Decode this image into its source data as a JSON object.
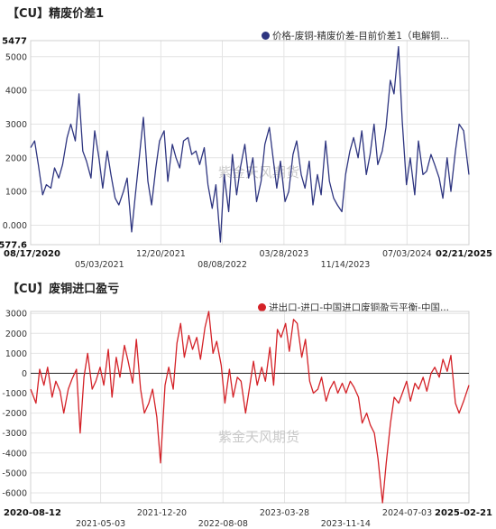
{
  "chart_data": [
    {
      "type": "line",
      "title": "【CU】精废价差1",
      "legend": "价格-废铜-精废价差-目前价差1（电解铜...",
      "legend_position": "top-right",
      "color": "#2e3580",
      "watermark": "紫金天风期货",
      "grid": true,
      "ylim": [
        -577.6,
        5477
      ],
      "yticks": [
        "5477",
        "5000",
        "4000",
        "3000",
        "2000",
        "1000",
        "0.000",
        "-577.6"
      ],
      "ytick_values": [
        5477,
        5000,
        4000,
        3000,
        2000,
        1000,
        0,
        -577.6
      ],
      "xlim": [
        "2020-08-17",
        "2025-02-21"
      ],
      "xticks_top": [
        "08/17/2020",
        "12/20/2021",
        "03/28/2023",
        "07/03/2024",
        "02/21/2025"
      ],
      "xticks_bottom": [
        "05/03/2021",
        "08/08/2022",
        "11/14/2023"
      ],
      "xticks_top_dates": [
        "2020-08-17",
        "2021-12-20",
        "2023-03-28",
        "2024-07-03",
        "2025-02-21"
      ],
      "xticks_bottom_dates": [
        "2021-05-03",
        "2022-08-08",
        "2023-11-14"
      ],
      "series": [
        {
          "x": [
            "2020-08-17",
            "2020-09-01",
            "2020-09-15",
            "2020-10-01",
            "2020-10-15",
            "2020-11-01",
            "2020-11-15",
            "2020-12-01",
            "2020-12-15",
            "2021-01-01",
            "2021-01-15",
            "2021-02-01",
            "2021-02-15",
            "2021-03-01",
            "2021-03-15",
            "2021-04-01",
            "2021-04-15",
            "2021-05-01",
            "2021-05-15",
            "2021-06-01",
            "2021-06-15",
            "2021-07-01",
            "2021-07-15",
            "2021-08-01",
            "2021-08-15",
            "2021-09-01",
            "2021-09-15",
            "2021-10-01",
            "2021-10-15",
            "2021-11-01",
            "2021-11-15",
            "2021-12-01",
            "2021-12-15",
            "2022-01-01",
            "2022-01-15",
            "2022-02-01",
            "2022-02-15",
            "2022-03-01",
            "2022-03-15",
            "2022-04-01",
            "2022-04-15",
            "2022-05-01",
            "2022-05-15",
            "2022-06-01",
            "2022-06-15",
            "2022-07-01",
            "2022-07-15",
            "2022-08-01",
            "2022-08-15",
            "2022-09-01",
            "2022-09-15",
            "2022-10-01",
            "2022-10-15",
            "2022-11-01",
            "2022-11-15",
            "2022-12-01",
            "2022-12-15",
            "2023-01-01",
            "2023-01-15",
            "2023-02-01",
            "2023-02-15",
            "2023-03-01",
            "2023-03-15",
            "2023-04-01",
            "2023-04-15",
            "2023-05-01",
            "2023-05-15",
            "2023-06-01",
            "2023-06-15",
            "2023-07-01",
            "2023-07-15",
            "2023-08-01",
            "2023-08-15",
            "2023-09-01",
            "2023-09-15",
            "2023-10-01",
            "2023-10-15",
            "2023-11-01",
            "2023-11-15",
            "2023-12-01",
            "2023-12-15",
            "2024-01-01",
            "2024-01-15",
            "2024-02-01",
            "2024-02-15",
            "2024-03-01",
            "2024-03-15",
            "2024-04-01",
            "2024-04-15",
            "2024-05-01",
            "2024-05-15",
            "2024-06-01",
            "2024-06-15",
            "2024-07-01",
            "2024-07-15",
            "2024-08-01",
            "2024-08-15",
            "2024-09-01",
            "2024-09-15",
            "2024-10-01",
            "2024-10-15",
            "2024-11-01",
            "2024-11-15",
            "2024-12-01",
            "2024-12-15",
            "2025-01-01",
            "2025-01-15",
            "2025-02-01",
            "2025-02-21"
          ],
          "values": [
            2300,
            2500,
            1800,
            900,
            1200,
            1100,
            1700,
            1400,
            1800,
            2600,
            3000,
            2500,
            3900,
            2200,
            1900,
            1400,
            2800,
            2000,
            1100,
            2200,
            1500,
            800,
            600,
            1000,
            1400,
            -200,
            900,
            2100,
            3200,
            1300,
            600,
            1700,
            2500,
            2800,
            1300,
            2400,
            2000,
            1700,
            2500,
            2600,
            2100,
            2200,
            1800,
            2300,
            1200,
            500,
            1200,
            -500,
            1500,
            400,
            2100,
            900,
            1700,
            2400,
            1400,
            2000,
            700,
            1300,
            2400,
            2900,
            2000,
            1100,
            1900,
            700,
            1000,
            2100,
            2500,
            1500,
            1100,
            1900,
            600,
            1500,
            900,
            2500,
            1300,
            800,
            600,
            400,
            1500,
            2200,
            2600,
            2000,
            2800,
            1500,
            2100,
            3000,
            1800,
            2200,
            2900,
            4300,
            3900,
            5300,
            3100,
            1200,
            2000,
            900,
            2500,
            1500,
            1600,
            2100,
            1800,
            1400,
            800,
            2000,
            1000,
            2200,
            3000,
            2800,
            1500
          ]
        }
      ]
    },
    {
      "type": "line",
      "title": "【CU】废铜进口盈亏",
      "legend": "进出口-进口-中国进口废铜盈亏平衡-中国...",
      "legend_position": "top-right",
      "color": "#d42228",
      "watermark": "紫金天风期货",
      "grid": true,
      "ylim": [
        -6500,
        3100
      ],
      "yticks": [
        "3000",
        "2000",
        "1000",
        "0",
        "-1000",
        "-2000",
        "-3000",
        "-4000",
        "-5000",
        "-6000"
      ],
      "ytick_values": [
        3000,
        2000,
        1000,
        0,
        -1000,
        -2000,
        -3000,
        -4000,
        -5000,
        -6000
      ],
      "zero_line": true,
      "xlim": [
        "2020-08-12",
        "2025-02-21"
      ],
      "xticks_top": [
        "2020-08-12",
        "2021-12-20",
        "2023-03-28",
        "2024-07-03",
        "2025-02-21"
      ],
      "xticks_bottom": [
        "2021-05-03",
        "2022-08-08",
        "2023-11-14"
      ],
      "series": [
        {
          "x": [
            "2020-08-12",
            "2020-09-01",
            "2020-09-15",
            "2020-10-01",
            "2020-10-15",
            "2020-11-01",
            "2020-11-15",
            "2020-12-01",
            "2020-12-15",
            "2021-01-01",
            "2021-01-15",
            "2021-02-01",
            "2021-02-15",
            "2021-03-01",
            "2021-03-15",
            "2021-04-01",
            "2021-04-15",
            "2021-05-01",
            "2021-05-15",
            "2021-06-01",
            "2021-06-15",
            "2021-07-01",
            "2021-07-15",
            "2021-08-01",
            "2021-08-15",
            "2021-09-01",
            "2021-09-15",
            "2021-10-01",
            "2021-10-15",
            "2021-11-01",
            "2021-11-15",
            "2021-12-01",
            "2021-12-15",
            "2022-01-01",
            "2022-01-15",
            "2022-02-01",
            "2022-02-15",
            "2022-03-01",
            "2022-03-15",
            "2022-04-01",
            "2022-04-15",
            "2022-05-01",
            "2022-05-15",
            "2022-06-01",
            "2022-06-15",
            "2022-07-01",
            "2022-07-15",
            "2022-08-01",
            "2022-08-15",
            "2022-09-01",
            "2022-09-15",
            "2022-10-01",
            "2022-10-15",
            "2022-11-01",
            "2022-11-15",
            "2022-12-01",
            "2022-12-15",
            "2023-01-01",
            "2023-01-15",
            "2023-02-01",
            "2023-02-15",
            "2023-03-01",
            "2023-03-15",
            "2023-04-01",
            "2023-04-15",
            "2023-05-01",
            "2023-05-15",
            "2023-06-01",
            "2023-06-15",
            "2023-07-01",
            "2023-07-15",
            "2023-08-01",
            "2023-08-15",
            "2023-09-01",
            "2023-09-15",
            "2023-10-01",
            "2023-10-15",
            "2023-11-01",
            "2023-11-15",
            "2023-12-01",
            "2023-12-15",
            "2024-01-01",
            "2024-01-15",
            "2024-02-01",
            "2024-02-15",
            "2024-03-01",
            "2024-03-15",
            "2024-04-01",
            "2024-04-15",
            "2024-05-01",
            "2024-05-15",
            "2024-06-01",
            "2024-06-15",
            "2024-07-01",
            "2024-07-15",
            "2024-08-01",
            "2024-08-15",
            "2024-09-01",
            "2024-09-15",
            "2024-10-01",
            "2024-10-15",
            "2024-11-01",
            "2024-11-15",
            "2024-12-01",
            "2024-12-15",
            "2025-01-01",
            "2025-01-15",
            "2025-02-01",
            "2025-02-21"
          ],
          "values": [
            -800,
            -1500,
            200,
            -600,
            300,
            -1200,
            -400,
            -900,
            -2000,
            -800,
            -300,
            200,
            -3000,
            -200,
            1000,
            -800,
            -400,
            300,
            -600,
            1200,
            -1200,
            800,
            -200,
            1400,
            600,
            -500,
            1700,
            -800,
            -2000,
            -1500,
            -800,
            -2200,
            -4500,
            -600,
            300,
            -800,
            1500,
            2500,
            800,
            1900,
            1200,
            1800,
            700,
            2300,
            3100,
            1000,
            1600,
            400,
            -1500,
            200,
            -1200,
            -200,
            -400,
            -2000,
            -800,
            600,
            -600,
            300,
            -400,
            1300,
            -600,
            2200,
            1800,
            2500,
            1100,
            2700,
            2500,
            800,
            1700,
            -400,
            -1000,
            -800,
            -200,
            -1400,
            -800,
            -400,
            -1000,
            -500,
            -1000,
            -400,
            -700,
            -1200,
            -2500,
            -2000,
            -2600,
            -3000,
            -4300,
            -6500,
            -4500,
            -2500,
            -1200,
            -1500,
            -1000,
            -400,
            -1400,
            -500,
            -800,
            -200,
            -900,
            0,
            300,
            -200,
            700,
            100,
            900,
            -1500,
            -2000,
            -1400,
            -600
          ]
        }
      ]
    }
  ]
}
